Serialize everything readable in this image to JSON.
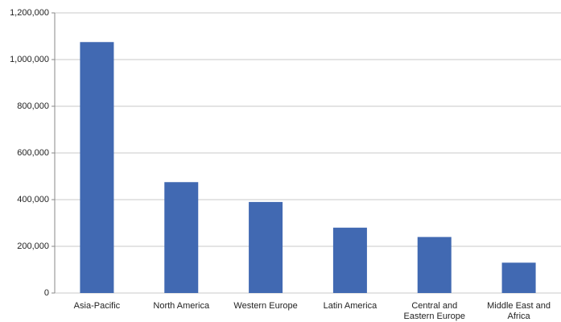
{
  "chart_data": {
    "type": "bar",
    "categories": [
      "Asia-Pacific",
      "North America",
      "Western Europe",
      "Latin America",
      "Central and\nEastern Europe",
      "Middle East and\nAfrica"
    ],
    "values": [
      1075000,
      475000,
      390000,
      280000,
      240000,
      130000
    ],
    "color": "#4169b2",
    "ylim": [
      0,
      1200000
    ],
    "yticks": [
      0,
      {
        "value": 200000,
        "label": "200,000"
      },
      {
        "value": 400000,
        "label": "400,000"
      },
      {
        "value": 600000,
        "label": "600,000"
      },
      {
        "value": 800000,
        "label": "800,000"
      },
      {
        "value": 1000000,
        "label": "1,000,000"
      },
      {
        "value": 1200000,
        "label": "1,200,000"
      }
    ],
    "grid": true
  }
}
